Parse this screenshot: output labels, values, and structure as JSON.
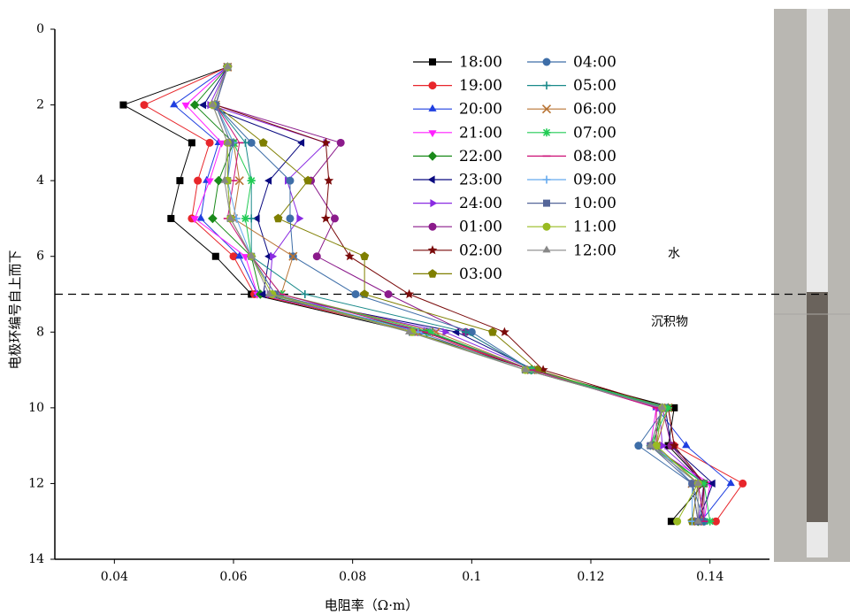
{
  "chart_data": {
    "type": "line",
    "x_label": "电阻率（Ω·m）",
    "y_label": "电极环编号自上而下",
    "annotations": [
      "水",
      "沉积物"
    ],
    "reference_line": 7,
    "xlim": [
      0.03,
      0.15
    ],
    "xticks": [
      0.04,
      0.06,
      0.08,
      0.1,
      0.12,
      0.14
    ],
    "ylim": [
      0,
      14
    ],
    "yticks": [
      0,
      2,
      4,
      6,
      8,
      10,
      12,
      14
    ],
    "y_inverted": true,
    "y": [
      1,
      2,
      3,
      4,
      5,
      6,
      7,
      8,
      9,
      10,
      11,
      12,
      13
    ],
    "series": [
      {
        "name": "18:00",
        "color": "#000000",
        "marker": "square",
        "values": [
          0.059,
          0.0415,
          0.053,
          0.051,
          0.0495,
          0.057,
          0.063,
          0.09,
          0.11,
          0.134,
          0.133,
          0.139,
          0.1335
        ]
      },
      {
        "name": "19:00",
        "color": "#e8262b",
        "marker": "circle",
        "values": [
          0.059,
          0.045,
          0.056,
          0.054,
          0.053,
          0.06,
          0.0635,
          0.091,
          0.11,
          0.133,
          0.134,
          0.1455,
          0.141
        ]
      },
      {
        "name": "20:00",
        "color": "#1f3fe0",
        "marker": "triangle-up",
        "values": [
          0.059,
          0.05,
          0.0575,
          0.0555,
          0.0545,
          0.061,
          0.064,
          0.092,
          0.11,
          0.131,
          0.136,
          0.1435,
          0.1385
        ]
      },
      {
        "name": "21:00",
        "color": "#ff1fff",
        "marker": "triangle-down",
        "values": [
          0.059,
          0.052,
          0.058,
          0.056,
          0.0535,
          0.062,
          0.064,
          0.093,
          0.11,
          0.131,
          0.13,
          0.14,
          0.139
        ]
      },
      {
        "name": "22:00",
        "color": "#1a8a1a",
        "marker": "diamond",
        "values": [
          0.059,
          0.0535,
          0.06,
          0.0575,
          0.0565,
          0.063,
          0.0645,
          0.0925,
          0.11,
          0.132,
          0.1305,
          0.139,
          0.138
        ]
      },
      {
        "name": "23:00",
        "color": "#0a0a80",
        "marker": "triangle-left",
        "values": [
          0.059,
          0.055,
          0.0715,
          0.066,
          0.064,
          0.066,
          0.065,
          0.0975,
          0.1105,
          0.1325,
          0.1335,
          0.1405,
          0.138
        ]
      },
      {
        "name": "24:00",
        "color": "#8a2be2",
        "marker": "triangle-right",
        "values": [
          0.059,
          0.056,
          0.0755,
          0.069,
          0.071,
          0.0665,
          0.066,
          0.0955,
          0.1105,
          0.1315,
          0.132,
          0.139,
          0.138
        ]
      },
      {
        "name": "01:00",
        "color": "#8b1a8b",
        "marker": "circle",
        "values": [
          0.059,
          0.057,
          0.078,
          0.073,
          0.077,
          0.074,
          0.086,
          0.099,
          0.11,
          0.132,
          0.1335,
          0.139,
          0.139
        ]
      },
      {
        "name": "02:00",
        "color": "#7a0a0a",
        "marker": "star",
        "values": [
          0.059,
          0.057,
          0.0755,
          0.076,
          0.0755,
          0.0795,
          0.0895,
          0.1055,
          0.112,
          0.133,
          0.134,
          0.139,
          0.1385
        ]
      },
      {
        "name": "03:00",
        "color": "#7f7f00",
        "marker": "pentagon",
        "values": [
          0.059,
          0.057,
          0.065,
          0.0725,
          0.0675,
          0.082,
          0.082,
          0.1035,
          0.111,
          0.132,
          0.131,
          0.138,
          0.137
        ]
      },
      {
        "name": "04:00",
        "color": "#3e6ea8",
        "marker": "circle",
        "values": [
          0.059,
          0.057,
          0.063,
          0.0695,
          0.0695,
          0.07,
          0.0805,
          0.1,
          0.11,
          0.1325,
          0.128,
          0.137,
          0.139
        ]
      },
      {
        "name": "05:00",
        "color": "#1a8a8a",
        "marker": "plus",
        "values": [
          0.059,
          0.057,
          0.062,
          0.063,
          0.063,
          0.063,
          0.072,
          0.099,
          0.11,
          0.132,
          0.13,
          0.138,
          0.139
        ]
      },
      {
        "name": "06:00",
        "color": "#b87333",
        "marker": "x",
        "values": [
          0.059,
          0.057,
          0.06,
          0.061,
          0.06,
          0.07,
          0.068,
          0.094,
          0.11,
          0.133,
          0.131,
          0.137,
          0.138
        ]
      },
      {
        "name": "07:00",
        "color": "#22cc55",
        "marker": "asterisk",
        "values": [
          0.059,
          0.057,
          0.06,
          0.063,
          0.062,
          0.063,
          0.068,
          0.093,
          0.11,
          0.133,
          0.13,
          0.139,
          0.14
        ]
      },
      {
        "name": "08:00",
        "color": "#cc1177",
        "marker": "dash",
        "values": [
          0.059,
          0.057,
          0.061,
          0.06,
          0.059,
          0.063,
          0.068,
          0.092,
          0.11,
          0.131,
          0.131,
          0.138,
          0.139
        ]
      },
      {
        "name": "09:00",
        "color": "#66aaee",
        "marker": "plus",
        "values": [
          0.059,
          0.057,
          0.06,
          0.059,
          0.0605,
          0.063,
          0.067,
          0.091,
          0.109,
          0.132,
          0.131,
          0.137,
          0.137
        ]
      },
      {
        "name": "10:00",
        "color": "#556699",
        "marker": "square",
        "values": [
          0.059,
          0.057,
          0.0595,
          0.059,
          0.0595,
          0.063,
          0.067,
          0.09,
          0.109,
          0.132,
          0.13,
          0.137,
          0.138
        ]
      },
      {
        "name": "11:00",
        "color": "#99bb22",
        "marker": "circle",
        "values": [
          0.059,
          0.0565,
          0.059,
          0.059,
          0.0595,
          0.063,
          0.0665,
          0.09,
          0.109,
          0.132,
          0.131,
          0.138,
          0.1345
        ]
      },
      {
        "name": "12:00",
        "color": "#888888",
        "marker": "triangle-up",
        "values": [
          0.059,
          0.0565,
          0.059,
          0.0585,
          0.0595,
          0.063,
          0.066,
          0.0895,
          0.109,
          0.132,
          0.13,
          0.138,
          0.138
        ]
      }
    ]
  }
}
